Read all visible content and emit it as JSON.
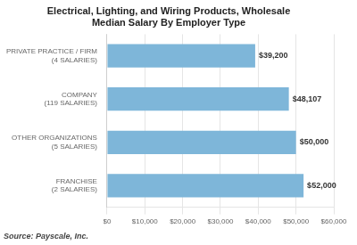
{
  "chart_data": {
    "type": "bar",
    "orientation": "horizontal",
    "title": "Electrical, Lighting, and Wiring Products, Wholesale\nMedian Salary By Employer Type",
    "annotation": "Source: Payscale, Inc.",
    "categories": [
      "PRIVATE PRACTICE / FIRM (4 SALARIES)",
      "COMPANY (119 SALARIES)",
      "OTHER ORGANIZATIONS (5 SALARIES)",
      "FRANCHISE (2 SALARIES)"
    ],
    "values": [
      39200,
      48107,
      50000,
      52000
    ],
    "value_labels": [
      "$39,200",
      "$48,107",
      "$50,000",
      "$52,000"
    ],
    "data_labels": true,
    "color": "#7EB6D9",
    "xlim": [
      0,
      60000
    ],
    "xticks": [
      {
        "value": 0,
        "label": "$0"
      },
      {
        "value": 10000,
        "label": "$10,000"
      },
      {
        "value": 20000,
        "label": "$20,000"
      },
      {
        "value": 30000,
        "label": "$30,000"
      },
      {
        "value": 40000,
        "label": "$40,000"
      },
      {
        "value": 50000,
        "label": "$50,000"
      },
      {
        "value": 60000,
        "label": "$60,000"
      }
    ],
    "grid": true
  }
}
